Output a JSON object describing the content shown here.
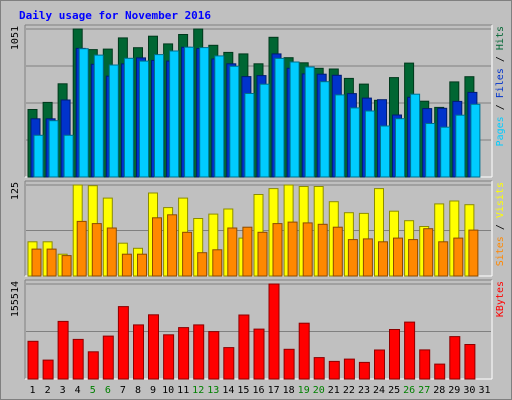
{
  "chart_data": {
    "type": "bar",
    "title": "Daily usage for November 2016",
    "categories": [
      "1",
      "2",
      "3",
      "4",
      "5",
      "6",
      "7",
      "8",
      "9",
      "10",
      "11",
      "12",
      "13",
      "14",
      "15",
      "16",
      "17",
      "18",
      "19",
      "20",
      "21",
      "22",
      "23",
      "24",
      "25",
      "26",
      "27",
      "28",
      "29",
      "30",
      "31"
    ],
    "weekend_days": [
      "5",
      "6",
      "12",
      "13",
      "19",
      "20",
      "26",
      "27"
    ],
    "panels": [
      {
        "name": "hits",
        "ymax_label": "1051",
        "ymax": 1051,
        "right_labels": [
          "Pages",
          "Files",
          "Hits"
        ],
        "series": [
          {
            "name": "Hits",
            "color": "#006633",
            "values": [
              479,
              530,
              662,
              1051,
              905,
              908,
              988,
              918,
              1000,
              945,
              1012,
              1051,
              935,
              885,
              874,
              804,
              992,
              847,
              811,
              772,
              767,
              700,
              660,
              545,
              706,
              809,
              538,
              494,
              675,
              712,
              0
            ]
          },
          {
            "name": "Files",
            "color": "#0033cc",
            "values": [
              413,
              413,
              547,
              913,
              800,
              716,
              803,
              846,
              828,
              823,
              921,
              912,
              838,
              804,
              713,
              720,
              874,
              772,
              732,
              730,
              722,
              592,
              560,
              549,
              440,
              566,
              486,
              488,
              537,
              601,
              0
            ]
          },
          {
            "name": "Pages",
            "color": "#00ccff",
            "values": [
              296,
              400,
              296,
              911,
              866,
              795,
              843,
              823,
              869,
              895,
              922,
              919,
              860,
              786,
              593,
              659,
              842,
              817,
              781,
              677,
              583,
              491,
              469,
              362,
              414,
              588,
              380,
              354,
              439,
              516,
              0
            ]
          }
        ]
      },
      {
        "name": "visits",
        "ymax_label": "125",
        "ymax": 125,
        "right_labels": [
          "Sites",
          "Visits"
        ],
        "series": [
          {
            "name": "Visits",
            "color": "#ffff00",
            "values": [
              47,
              47,
              30,
              125,
              124,
              107,
              45,
              38,
              114,
              94,
              107,
              79,
              85,
              92,
              52,
              112,
              120,
              125,
              123,
              123,
              102,
              87,
              86,
              120,
              89,
              76,
              68,
              99,
              103,
              98,
              0
            ]
          },
          {
            "name": "Sites",
            "color": "#ff8800",
            "values": [
              37,
              37,
              28,
              75,
              72,
              66,
              30,
              30,
              80,
              84,
              60,
              32,
              36,
              66,
              67,
              60,
              72,
              74,
              73,
              71,
              67,
              50,
              51,
              47,
              52,
              50,
              65,
              47,
              52,
              63,
              0
            ]
          }
        ]
      },
      {
        "name": "kbytes",
        "ymax_label": "155514",
        "ymax": 155514,
        "right_labels": [
          "KBytes"
        ],
        "series": [
          {
            "name": "KBytes",
            "color": "#ff0000",
            "values": [
              61770,
              30970,
              94250,
              64820,
              44530,
              70260,
              118470,
              88560,
              105070,
              72290,
              84220,
              88640,
              77630,
              51460,
              104750,
              81740,
              155514,
              48630,
              91270,
              35040,
              28750,
              32620,
              27240,
              47430,
              80960,
              93100,
              47610,
              24430,
              69470,
              56460,
              0
            ]
          }
        ]
      }
    ]
  }
}
